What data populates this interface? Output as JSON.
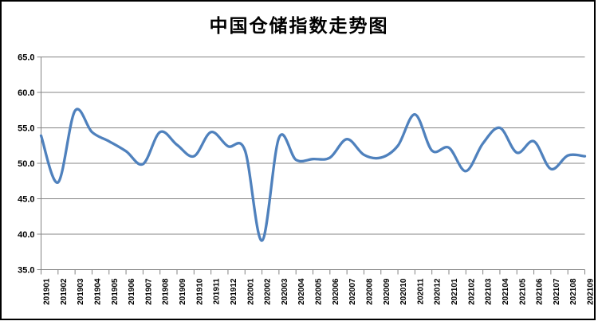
{
  "chart_data": {
    "type": "line",
    "title": "中国仓储指数走势图",
    "smooth": true,
    "grid": true,
    "legend": "none",
    "ylim": [
      35.0,
      65.0
    ],
    "y_ticks": [
      {
        "label": "65.0",
        "value": 65.0
      },
      {
        "label": "60.0",
        "value": 60.0
      },
      {
        "label": "55.0",
        "value": 55.0
      },
      {
        "label": "50.0",
        "value": 50.0
      },
      {
        "label": "45.0",
        "value": 45.0
      },
      {
        "label": "40.0",
        "value": 40.0
      },
      {
        "label": "35.0",
        "value": 35.0
      }
    ],
    "x_labels": [
      "201901",
      "201902",
      "201903",
      "201904",
      "201905",
      "201906",
      "201907",
      "201908",
      "201909",
      "201910",
      "201911",
      "201912",
      "202001",
      "202002",
      "202003",
      "202004",
      "202005",
      "202006",
      "202007",
      "202008",
      "202009",
      "202010",
      "202011",
      "202012",
      "202101",
      "202102",
      "202103",
      "202104",
      "202105",
      "202106",
      "202107",
      "202108",
      "202109"
    ],
    "values": [
      53.9,
      47.3,
      57.4,
      54.4,
      53.1,
      51.7,
      49.9,
      54.4,
      52.6,
      51.0,
      54.4,
      52.4,
      51.8,
      39.1,
      53.6,
      50.5,
      50.6,
      50.8,
      53.4,
      51.2,
      50.8,
      52.5,
      56.9,
      51.8,
      52.2,
      48.9,
      52.8,
      55.0,
      51.5,
      53.1,
      49.2,
      51.1,
      51.0
    ],
    "colors": {
      "line": "#4F81BD",
      "gridline": "#848484",
      "axis": "#848484",
      "text": "#000000",
      "background": "#FFFFFF",
      "border": "#000000"
    }
  }
}
